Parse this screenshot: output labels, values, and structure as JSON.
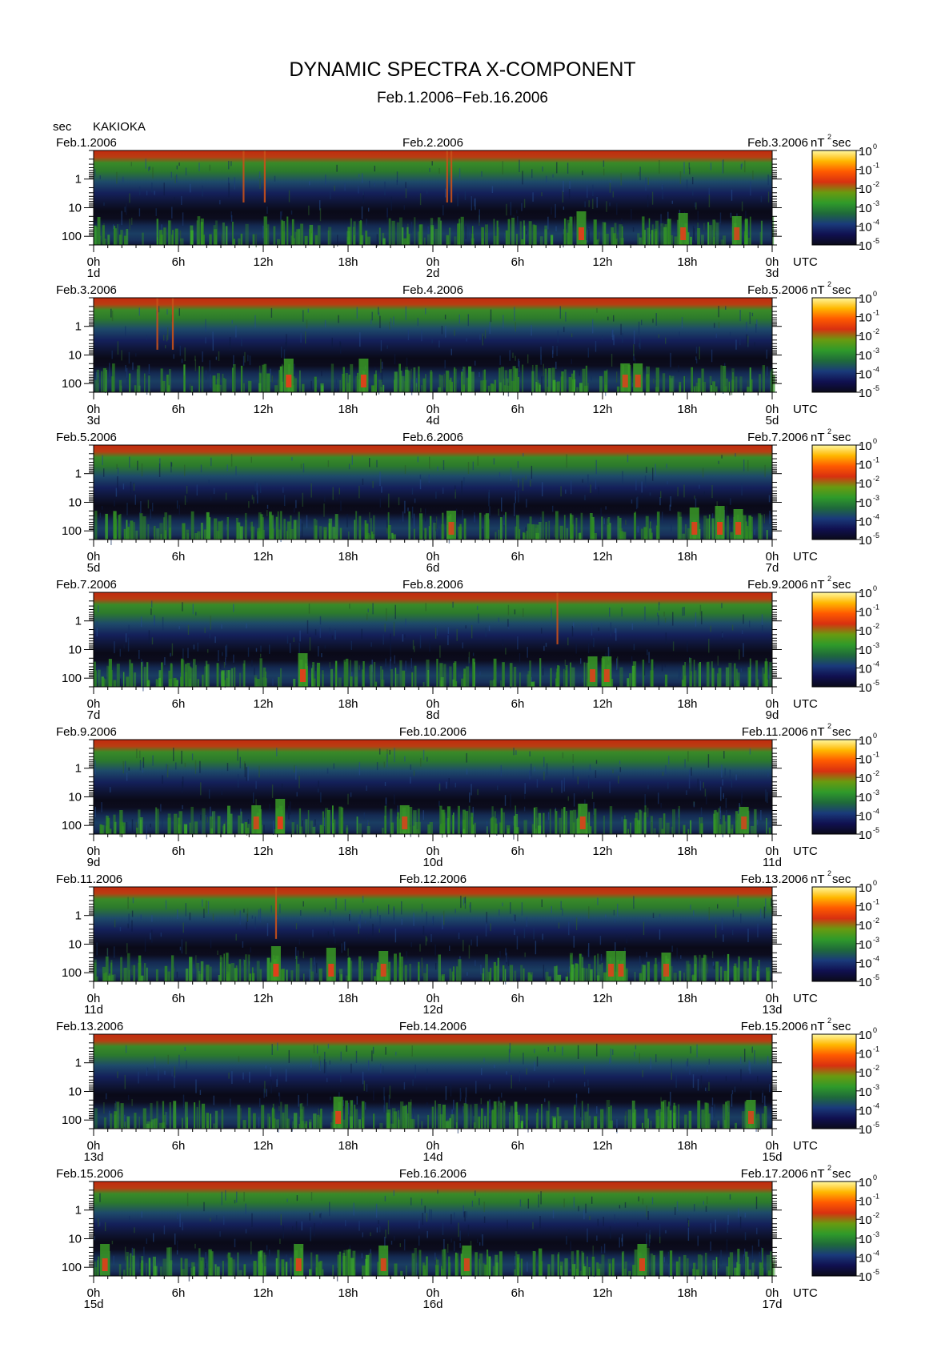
{
  "header": {
    "title": "DYNAMIC SPECTRA X-COMPONENT",
    "subtitle": "Feb.1.2006−Feb.16.2006",
    "y_unit": "sec",
    "station": "KAKIOKA"
  },
  "colors": {
    "spectrum_scale": [
      "#0a0a1a",
      "#101050",
      "#1a3a7a",
      "#1f6a3a",
      "#2f9a2a",
      "#6a9a10",
      "#d83010",
      "#ff5a00",
      "#ffb800",
      "#fff8a0"
    ],
    "background_low": "#0a0a14",
    "high_power_band": "#c83a10"
  },
  "chart_data": [
    {
      "type": "heatmap",
      "start_date_label": "Feb.1.2006",
      "mid_date_label": "Feb.2.2006",
      "end_date_label": "Feb.3.2006",
      "start_day": "1d",
      "mid_day": "2d",
      "end_day": "3d",
      "x_ticks": [
        "0h",
        "6h",
        "12h",
        "18h",
        "0h",
        "6h",
        "12h",
        "18h",
        "0h"
      ],
      "x_unit": "UTC",
      "y_ticks": [
        "1",
        "10",
        "100"
      ],
      "y_scale": "log",
      "y_reversed": true,
      "colorbar_unit": "nT",
      "colorbar_unit_sup": "2",
      "colorbar_unit_suffix": " sec",
      "colorbar_ticks": [
        {
          "b": "10",
          "e": "0"
        },
        {
          "b": "10",
          "e": "-1"
        },
        {
          "b": "10",
          "e": "-2"
        },
        {
          "b": "10",
          "e": "-3"
        },
        {
          "b": "10",
          "e": "-4"
        },
        {
          "b": "10",
          "e": "-5"
        }
      ],
      "spikes": [
        10.6,
        12.1,
        25.0,
        25.3
      ],
      "events": [
        {
          "hour": 34.5,
          "strength": 0.9
        },
        {
          "hour": 41.7,
          "strength": 0.8
        },
        {
          "hour": 45.5,
          "strength": 0.6
        }
      ]
    },
    {
      "type": "heatmap",
      "start_date_label": "Feb.3.2006",
      "mid_date_label": "Feb.4.2006",
      "end_date_label": "Feb.5.2006",
      "start_day": "3d",
      "mid_day": "4d",
      "end_day": "5d",
      "x_ticks": [
        "0h",
        "6h",
        "12h",
        "18h",
        "0h",
        "6h",
        "12h",
        "18h",
        "0h"
      ],
      "x_unit": "UTC",
      "y_ticks": [
        "1",
        "10",
        "100"
      ],
      "y_scale": "log",
      "y_reversed": true,
      "colorbar_unit": "nT",
      "colorbar_unit_sup": "2",
      "colorbar_unit_suffix": " sec",
      "colorbar_ticks": [
        {
          "b": "10",
          "e": "0"
        },
        {
          "b": "10",
          "e": "-1"
        },
        {
          "b": "10",
          "e": "-2"
        },
        {
          "b": "10",
          "e": "-3"
        },
        {
          "b": "10",
          "e": "-4"
        },
        {
          "b": "10",
          "e": "-5"
        }
      ],
      "spikes": [
        4.5,
        5.6
      ],
      "events": [
        {
          "hour": 13.8,
          "strength": 0.9
        },
        {
          "hour": 19.1,
          "strength": 0.9
        },
        {
          "hour": 37.6,
          "strength": 0.6
        },
        {
          "hour": 38.5,
          "strength": 0.6
        }
      ]
    },
    {
      "type": "heatmap",
      "start_date_label": "Feb.5.2006",
      "mid_date_label": "Feb.6.2006",
      "end_date_label": "Feb.7.2006",
      "start_day": "5d",
      "mid_day": "6d",
      "end_day": "7d",
      "x_ticks": [
        "0h",
        "6h",
        "12h",
        "18h",
        "0h",
        "6h",
        "12h",
        "18h",
        "0h"
      ],
      "x_unit": "UTC",
      "y_ticks": [
        "1",
        "10",
        "100"
      ],
      "y_scale": "log",
      "y_reversed": true,
      "colorbar_unit": "nT",
      "colorbar_unit_sup": "2",
      "colorbar_unit_suffix": " sec",
      "colorbar_ticks": [
        {
          "b": "10",
          "e": "0"
        },
        {
          "b": "10",
          "e": "-1"
        },
        {
          "b": "10",
          "e": "-2"
        },
        {
          "b": "10",
          "e": "-3"
        },
        {
          "b": "10",
          "e": "-4"
        },
        {
          "b": "10",
          "e": "-5"
        }
      ],
      "spikes": [],
      "events": [
        {
          "hour": 25.3,
          "strength": 0.6
        },
        {
          "hour": 42.5,
          "strength": 0.8
        },
        {
          "hour": 44.3,
          "strength": 0.9
        },
        {
          "hour": 45.6,
          "strength": 0.7
        }
      ]
    },
    {
      "type": "heatmap",
      "start_date_label": "Feb.7.2006",
      "mid_date_label": "Feb.8.2006",
      "end_date_label": "Feb.9.2006",
      "start_day": "7d",
      "mid_day": "8d",
      "end_day": "9d",
      "x_ticks": [
        "0h",
        "6h",
        "12h",
        "18h",
        "0h",
        "6h",
        "12h",
        "18h",
        "0h"
      ],
      "x_unit": "UTC",
      "y_ticks": [
        "1",
        "10",
        "100"
      ],
      "y_scale": "log",
      "y_reversed": true,
      "colorbar_unit": "nT",
      "colorbar_unit_sup": "2",
      "colorbar_unit_suffix": " sec",
      "colorbar_ticks": [
        {
          "b": "10",
          "e": "0"
        },
        {
          "b": "10",
          "e": "-1"
        },
        {
          "b": "10",
          "e": "-2"
        },
        {
          "b": "10",
          "e": "-3"
        },
        {
          "b": "10",
          "e": "-4"
        },
        {
          "b": "10",
          "e": "-5"
        }
      ],
      "spikes": [
        32.8
      ],
      "events": [
        {
          "hour": 14.8,
          "strength": 0.9
        },
        {
          "hour": 35.3,
          "strength": 0.7
        },
        {
          "hour": 36.3,
          "strength": 0.7
        }
      ]
    },
    {
      "type": "heatmap",
      "start_date_label": "Feb.9.2006",
      "mid_date_label": "Feb.10.2006",
      "end_date_label": "Feb.11.2006",
      "start_day": "9d",
      "mid_day": "10d",
      "end_day": "11d",
      "x_ticks": [
        "0h",
        "6h",
        "12h",
        "18h",
        "0h",
        "6h",
        "12h",
        "18h",
        "0h"
      ],
      "x_unit": "UTC",
      "y_ticks": [
        "1",
        "10",
        "100"
      ],
      "y_scale": "log",
      "y_reversed": true,
      "colorbar_unit": "nT",
      "colorbar_unit_sup": "2",
      "colorbar_unit_suffix": " sec",
      "colorbar_ticks": [
        {
          "b": "10",
          "e": "0"
        },
        {
          "b": "10",
          "e": "-1"
        },
        {
          "b": "10",
          "e": "-2"
        },
        {
          "b": "10",
          "e": "-3"
        },
        {
          "b": "10",
          "e": "-4"
        },
        {
          "b": "10",
          "e": "-5"
        }
      ],
      "spikes": [],
      "events": [
        {
          "hour": 13.2,
          "strength": 1.0
        },
        {
          "hour": 11.5,
          "strength": 0.6
        },
        {
          "hour": 22.0,
          "strength": 0.6
        },
        {
          "hour": 34.6,
          "strength": 0.7
        },
        {
          "hour": 46.0,
          "strength": 0.5
        }
      ]
    },
    {
      "type": "heatmap",
      "start_date_label": "Feb.11.2006",
      "mid_date_label": "Feb.12.2006",
      "end_date_label": "Feb.13.2006",
      "start_day": "11d",
      "mid_day": "12d",
      "end_day": "13d",
      "x_ticks": [
        "0h",
        "6h",
        "12h",
        "18h",
        "0h",
        "6h",
        "12h",
        "18h",
        "0h"
      ],
      "x_unit": "UTC",
      "y_ticks": [
        "1",
        "10",
        "100"
      ],
      "y_scale": "log",
      "y_reversed": true,
      "colorbar_unit": "nT",
      "colorbar_unit_sup": "2",
      "colorbar_unit_suffix": " sec",
      "colorbar_ticks": [
        {
          "b": "10",
          "e": "0"
        },
        {
          "b": "10",
          "e": "-1"
        },
        {
          "b": "10",
          "e": "-2"
        },
        {
          "b": "10",
          "e": "-3"
        },
        {
          "b": "10",
          "e": "-4"
        },
        {
          "b": "10",
          "e": "-5"
        }
      ],
      "spikes": [
        12.9
      ],
      "events": [
        {
          "hour": 12.9,
          "strength": 1.0
        },
        {
          "hour": 16.8,
          "strength": 0.9
        },
        {
          "hour": 20.5,
          "strength": 0.7
        },
        {
          "hour": 36.6,
          "strength": 0.7
        },
        {
          "hour": 37.3,
          "strength": 0.7
        },
        {
          "hour": 40.5,
          "strength": 0.6
        }
      ]
    },
    {
      "type": "heatmap",
      "start_date_label": "Feb.13.2006",
      "mid_date_label": "Feb.14.2006",
      "end_date_label": "Feb.15.2006",
      "start_day": "13d",
      "mid_day": "14d",
      "end_day": "15d",
      "x_ticks": [
        "0h",
        "6h",
        "12h",
        "18h",
        "0h",
        "6h",
        "12h",
        "18h",
        "0h"
      ],
      "x_unit": "UTC",
      "y_ticks": [
        "1",
        "10",
        "100"
      ],
      "y_scale": "log",
      "y_reversed": true,
      "colorbar_unit": "nT",
      "colorbar_unit_sup": "2",
      "colorbar_unit_suffix": " sec",
      "colorbar_ticks": [
        {
          "b": "10",
          "e": "0"
        },
        {
          "b": "10",
          "e": "-1"
        },
        {
          "b": "10",
          "e": "-2"
        },
        {
          "b": "10",
          "e": "-3"
        },
        {
          "b": "10",
          "e": "-4"
        },
        {
          "b": "10",
          "e": "-5"
        }
      ],
      "spikes": [],
      "events": [
        {
          "hour": 17.3,
          "strength": 0.8
        },
        {
          "hour": 46.5,
          "strength": 0.6
        }
      ]
    },
    {
      "type": "heatmap",
      "start_date_label": "Feb.15.2006",
      "mid_date_label": "Feb.16.2006",
      "end_date_label": "Feb.17.2006",
      "start_day": "15d",
      "mid_day": "16d",
      "end_day": "17d",
      "x_ticks": [
        "0h",
        "6h",
        "12h",
        "18h",
        "0h",
        "6h",
        "12h",
        "18h",
        "0h"
      ],
      "x_unit": "UTC",
      "y_ticks": [
        "1",
        "10",
        "100"
      ],
      "y_scale": "log",
      "y_reversed": true,
      "colorbar_unit": "nT",
      "colorbar_unit_sup": "2",
      "colorbar_unit_suffix": " sec",
      "colorbar_ticks": [
        {
          "b": "10",
          "e": "0"
        },
        {
          "b": "10",
          "e": "-1"
        },
        {
          "b": "10",
          "e": "-2"
        },
        {
          "b": "10",
          "e": "-3"
        },
        {
          "b": "10",
          "e": "-4"
        },
        {
          "b": "10",
          "e": "-5"
        }
      ],
      "spikes": [],
      "events": [
        {
          "hour": 0.8,
          "strength": 0.8
        },
        {
          "hour": 14.5,
          "strength": 0.8
        },
        {
          "hour": 20.5,
          "strength": 0.7
        },
        {
          "hour": 26.4,
          "strength": 0.7
        },
        {
          "hour": 38.8,
          "strength": 0.8
        }
      ]
    }
  ]
}
